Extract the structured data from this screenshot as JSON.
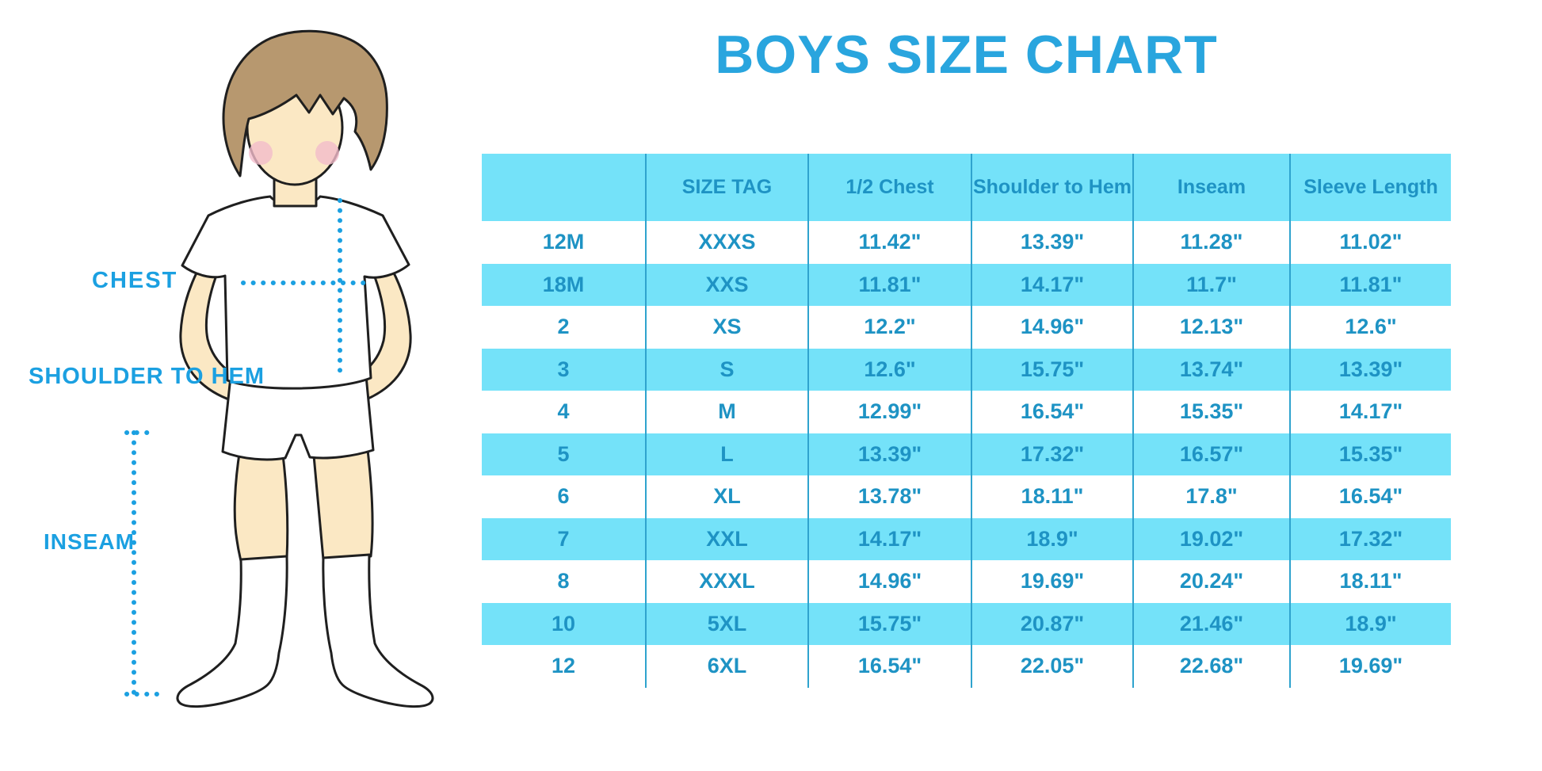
{
  "title": "BOYS SIZE CHART",
  "colors": {
    "accent": "#1BA0E1",
    "title": "#29A5DE",
    "cyan_fill": "#74E2F9",
    "table_text": "#1E93C4",
    "grid_line": "#2FA3CE",
    "skin": "#FBE8C4",
    "hair": "#B7986F",
    "blush": "#F3BCCB",
    "outline": "#1F1F1F"
  },
  "diagram": {
    "figure": "boy-in-tshirt-shorts-and-knee-socks",
    "chest_label": "CHEST",
    "shoulder_label": "SHOULDER TO HEM",
    "inseam_label": "INSEAM"
  },
  "chart_data": {
    "type": "table",
    "title": "BOYS SIZE CHART",
    "columns": [
      "",
      "SIZE TAG",
      "1/2 Chest",
      "Shoulder to Hem",
      "Inseam",
      "Sleeve Length"
    ],
    "rows": [
      [
        "12M",
        "XXXS",
        "11.42\"",
        "13.39\"",
        "11.28\"",
        "11.02\""
      ],
      [
        "18M",
        "XXS",
        "11.81\"",
        "14.17\"",
        "11.7\"",
        "11.81\""
      ],
      [
        "2",
        "XS",
        "12.2\"",
        "14.96\"",
        "12.13\"",
        "12.6\""
      ],
      [
        "3",
        "S",
        "12.6\"",
        "15.75\"",
        "13.74\"",
        "13.39\""
      ],
      [
        "4",
        "M",
        "12.99\"",
        "16.54\"",
        "15.35\"",
        "14.17\""
      ],
      [
        "5",
        "L",
        "13.39\"",
        "17.32\"",
        "16.57\"",
        "15.35\""
      ],
      [
        "6",
        "XL",
        "13.78\"",
        "18.11\"",
        "17.8\"",
        "16.54\""
      ],
      [
        "7",
        "XXL",
        "14.17\"",
        "18.9\"",
        "19.02\"",
        "17.32\""
      ],
      [
        "8",
        "XXXL",
        "14.96\"",
        "19.69\"",
        "20.24\"",
        "18.11\""
      ],
      [
        "10",
        "5XL",
        "15.75\"",
        "20.87\"",
        "21.46\"",
        "18.9\""
      ],
      [
        "12",
        "6XL",
        "16.54\"",
        "22.05\"",
        "22.68\"",
        "19.69\""
      ]
    ],
    "layout": {
      "striped": true,
      "stripe_rows": "even data rows (18M, 3, 5, 7, 10) plus header are cyan",
      "header_fill": "#74E2F9",
      "grid": "vertical separators only"
    }
  }
}
